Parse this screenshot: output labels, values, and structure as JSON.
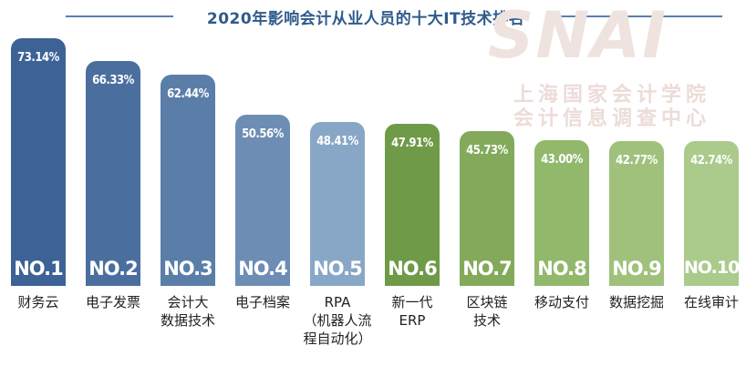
{
  "chart_data": {
    "type": "bar",
    "title": "2020年影响会计从业人员的十大IT技术排名",
    "categories": [
      "财务云",
      "电子发票",
      "会计大\n数据技术",
      "电子档案",
      "RPA\n（机器人流\n程自动化）",
      "新一代\nERP",
      "区块链\n技术",
      "移动支付",
      "数据挖掘",
      "在线审计"
    ],
    "values": [
      73.14,
      66.33,
      62.44,
      50.56,
      48.41,
      47.91,
      45.73,
      43.0,
      42.77,
      42.74
    ],
    "value_labels": [
      "73.14%",
      "66.33%",
      "62.44%",
      "50.56%",
      "48.41%",
      "47.91%",
      "45.73%",
      "43.00%",
      "42.77%",
      "42.74%"
    ],
    "ranks": [
      "NO.1",
      "NO.2",
      "NO.3",
      "NO.4",
      "NO.5",
      "NO.6",
      "NO.7",
      "NO.8",
      "NO.9",
      "NO.10"
    ],
    "xlabel": "",
    "ylabel": "",
    "ylim": [
      0,
      80
    ],
    "grid": false,
    "legend": "none"
  },
  "colors": {
    "title": "#2e5a8c",
    "title_line": "#5a7fae",
    "bars": [
      "#3d6296",
      "#4a6f9f",
      "#5b7ea9",
      "#6d8db4",
      "#88a7c6",
      "#6f9a48",
      "#82aa5a",
      "#92b86c",
      "#9fc17c",
      "#aacb8c"
    ]
  },
  "watermark": {
    "logo": "SNAI",
    "line1": "上海国家会计学院",
    "line2": "会计信息调查中心"
  }
}
